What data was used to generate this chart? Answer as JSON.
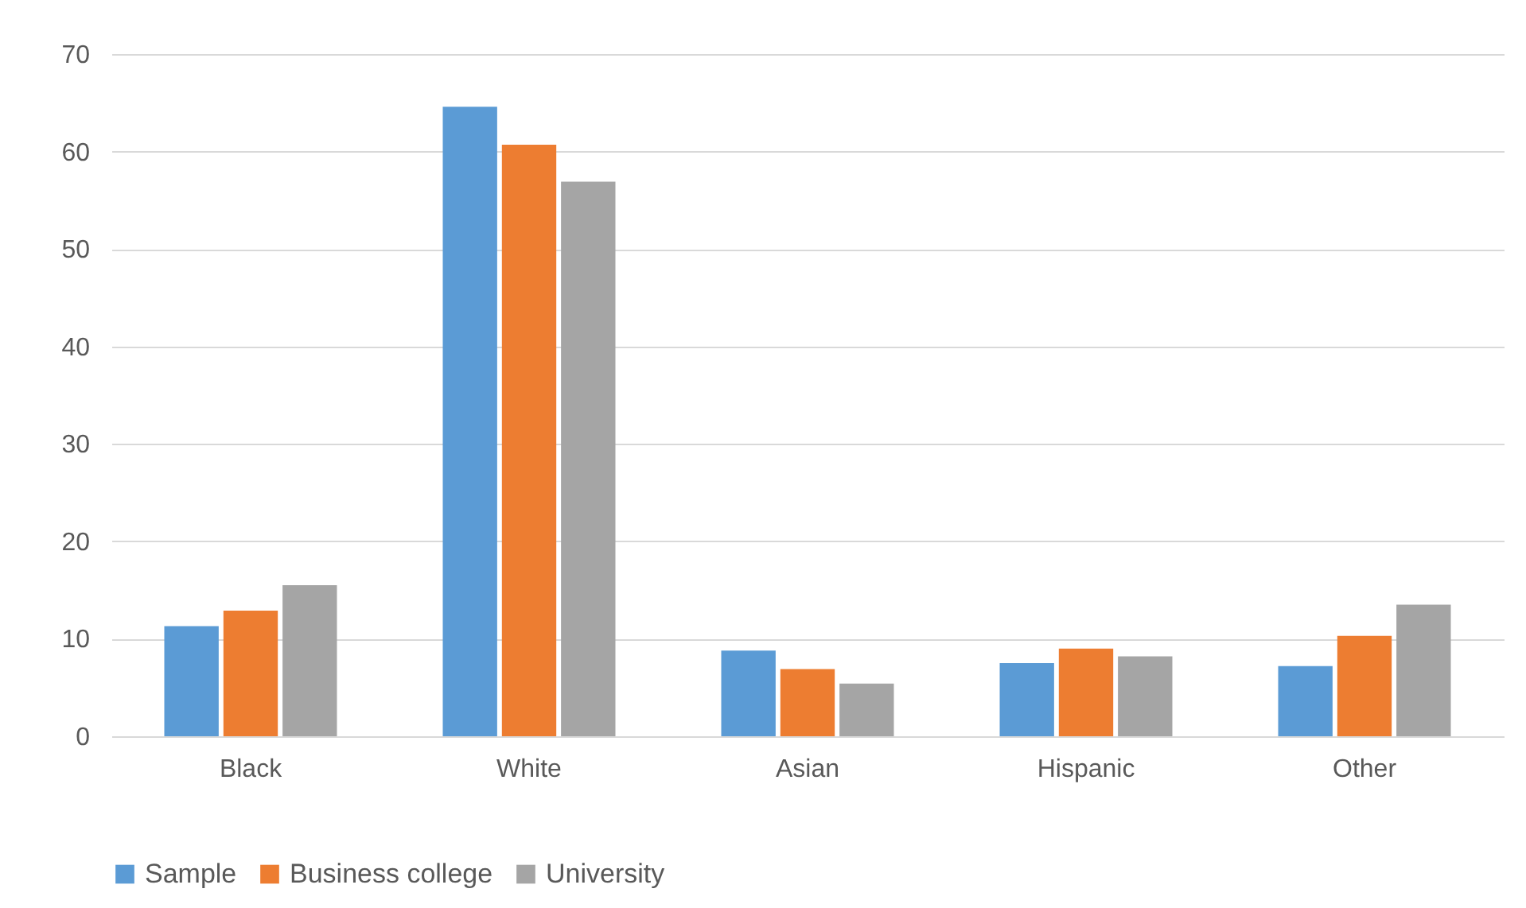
{
  "chart_data": {
    "type": "bar",
    "categories": [
      "Black",
      "White",
      "Asian",
      "Hispanic",
      "Other"
    ],
    "series": [
      {
        "name": "Sample",
        "color": "#5b9bd5",
        "values": [
          11.3,
          64.6,
          8.8,
          7.5,
          7.2
        ]
      },
      {
        "name": "Business college",
        "color": "#ed7d31",
        "values": [
          12.9,
          60.7,
          6.9,
          9.0,
          10.3
        ]
      },
      {
        "name": "University",
        "color": "#a5a5a5",
        "values": [
          15.5,
          56.9,
          5.4,
          8.2,
          13.5
        ]
      }
    ],
    "ylim": [
      0,
      70
    ],
    "yticks": [
      0,
      10,
      20,
      30,
      40,
      50,
      60,
      70
    ],
    "grid": "y",
    "legend": "bottom"
  }
}
